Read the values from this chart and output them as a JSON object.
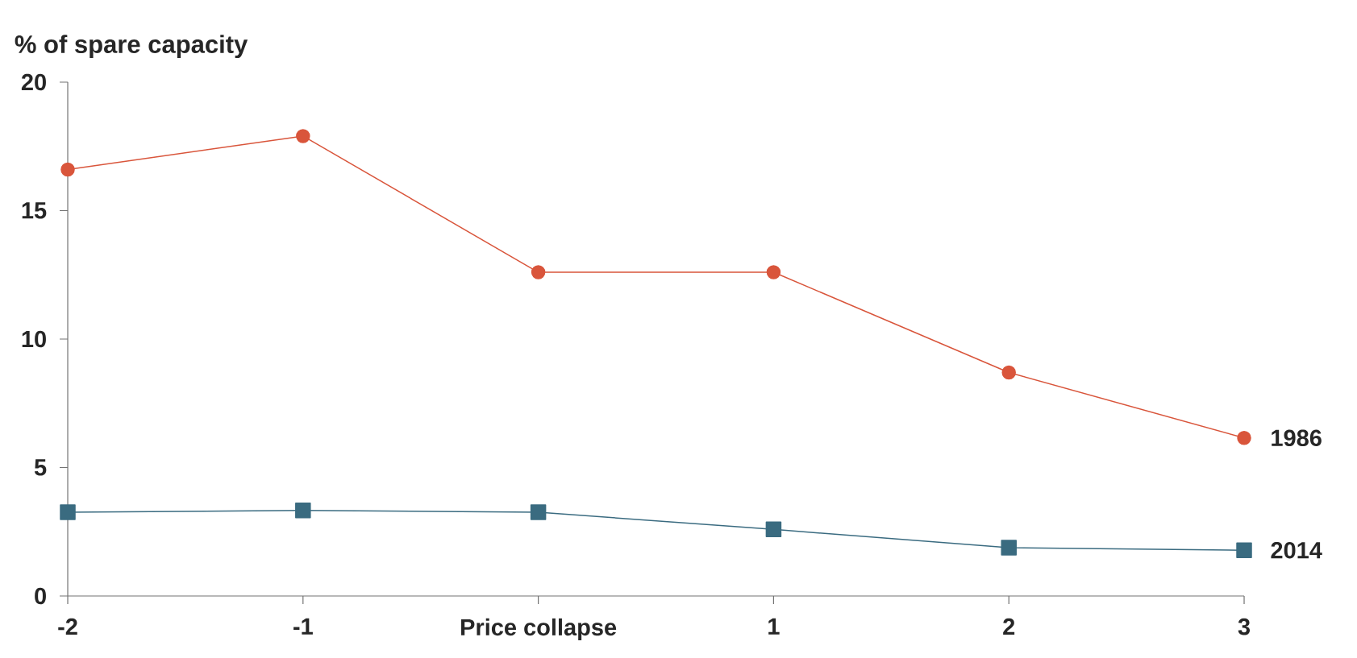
{
  "chart_data": {
    "type": "line",
    "ylabel": "% of spare capacity",
    "categories": [
      "-2",
      "-1",
      "Price collapse",
      "1",
      "2",
      "3"
    ],
    "ylim": [
      0,
      20
    ],
    "yticks": [
      0,
      5,
      10,
      15,
      20
    ],
    "grid": false,
    "series": [
      {
        "name": "1986",
        "color": "#d9553b",
        "marker": "circle",
        "values": [
          16.6,
          17.9,
          12.6,
          12.6,
          8.7,
          6.15
        ]
      },
      {
        "name": "2014",
        "color": "#3a6b80",
        "marker": "square",
        "values": [
          3.26,
          3.33,
          3.26,
          2.59,
          1.88,
          1.78
        ]
      }
    ]
  }
}
